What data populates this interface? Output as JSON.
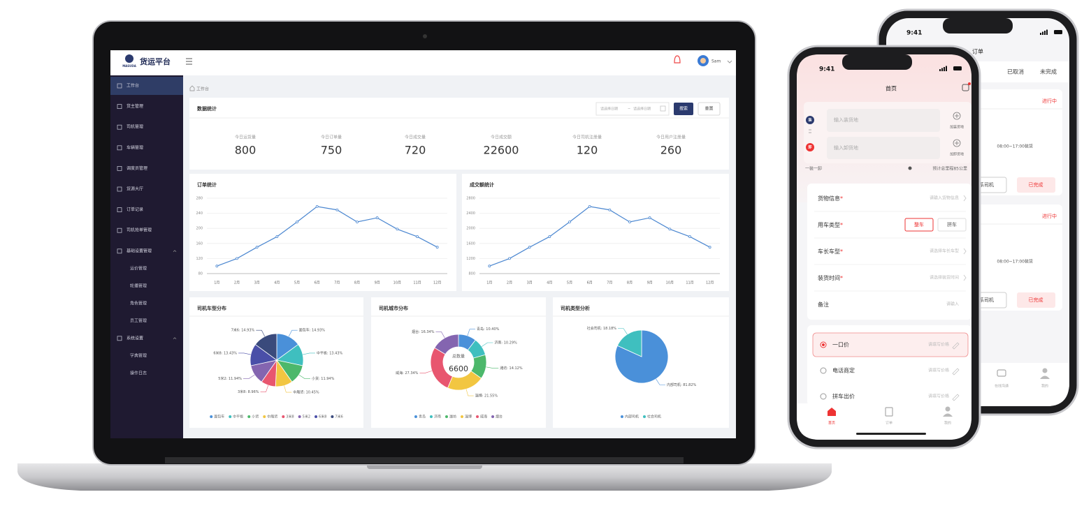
{
  "laptop": {
    "header": {
      "logo_brand": "MASUDA",
      "logo_text": "货运平台",
      "user": "Sam"
    },
    "sidebar": [
      {
        "label": "工作台"
      },
      {
        "label": "货主管理"
      },
      {
        "label": "司机管理"
      },
      {
        "label": "车辆管理"
      },
      {
        "label": "调度员管理"
      },
      {
        "label": "货源大厅"
      },
      {
        "label": "订单记录"
      },
      {
        "label": "司机抢单管理"
      },
      {
        "label": "基础设置管理",
        "children": [
          "运价管理",
          "轮播管理",
          "角色管理",
          "员工管理"
        ]
      },
      {
        "label": "系统设置",
        "children": [
          "字典管理",
          "操作日志"
        ]
      }
    ],
    "breadcrumb": "工作台",
    "stats": {
      "title": "数据统计",
      "date_start": "请选择日期",
      "date_sep": "~",
      "date_end": "请选择日期",
      "search": "搜索",
      "reset": "重置",
      "items": [
        {
          "label": "今日运货量",
          "value": 800
        },
        {
          "label": "今日订单量",
          "value": 750
        },
        {
          "label": "今日成交量",
          "value": 720
        },
        {
          "label": "今日成交额",
          "value": 22600
        },
        {
          "label": "今日司机注册量",
          "value": 120
        },
        {
          "label": "今日用户注册量",
          "value": 260
        }
      ]
    }
  },
  "chart_data": [
    {
      "type": "line",
      "title": "订单统计",
      "categories": [
        "1月",
        "2月",
        "3月",
        "4月",
        "5月",
        "6月",
        "7月",
        "8月",
        "9月",
        "10月",
        "11月",
        "12月"
      ],
      "values": [
        100,
        120,
        150,
        178,
        217,
        258,
        249,
        217,
        228,
        198,
        178,
        150
      ],
      "color": "#4a86d0",
      "ylim": [
        80,
        280
      ],
      "yticks": [
        80,
        120,
        160,
        200,
        240,
        280
      ],
      "grid": true
    },
    {
      "type": "line",
      "title": "成交额统计",
      "categories": [
        "1月",
        "2月",
        "3月",
        "4月",
        "5月",
        "6月",
        "7月",
        "8月",
        "9月",
        "10月",
        "11月",
        "12月"
      ],
      "values": [
        1000,
        1200,
        1500,
        1780,
        2170,
        2580,
        2490,
        2170,
        2280,
        1980,
        1780,
        1500
      ],
      "color": "#4a86d0",
      "ylim": [
        800,
        2800
      ],
      "yticks": [
        800,
        1200,
        1600,
        2000,
        2400,
        2800
      ],
      "grid": true
    },
    {
      "type": "pie",
      "title": "司机车型分布",
      "categories": [
        "面包车",
        "中平板",
        "小货",
        "中厢货",
        "3米8",
        "5米2",
        "6米8",
        "7米6"
      ],
      "values": [
        14.93,
        13.43,
        11.94,
        10.45,
        8.96,
        11.94,
        13.43,
        14.93
      ],
      "value_labels": [
        "面包车: 14.93%",
        "中平板: 13.43%",
        "小货: 11.94%",
        "中厢货: 10.45%",
        "3米8: 8.96%",
        "5米2: 11.94%",
        "6米8: 13.43%",
        "7米6: 14.93%"
      ],
      "colors": [
        "#4a90d9",
        "#3fbfbf",
        "#4cb86b",
        "#f2c641",
        "#e8566f",
        "#8465b0",
        "#4a4fa8",
        "#3a4a7c"
      ],
      "legend": "bottom"
    },
    {
      "type": "donut",
      "title": "司机城市分布",
      "center_label": "总数量",
      "center_value": 6600,
      "categories": [
        "青岛",
        "济南",
        "潍坊",
        "淄博",
        "威海",
        "烟台"
      ],
      "values": [
        10.4,
        10.29,
        14.12,
        21.55,
        27.34,
        16.34
      ],
      "value_labels": [
        "青岛: 10.40%",
        "济南: 10.29%",
        "潍坊: 14.12%",
        "淄博: 21.55%",
        "威海: 27.34%",
        "烟台: 16.34%"
      ],
      "colors": [
        "#4a90d9",
        "#3fbfbf",
        "#4cb86b",
        "#f2c641",
        "#e8566f",
        "#8465b0"
      ],
      "legend": "bottom"
    },
    {
      "type": "pie",
      "title": "司机类型分析",
      "categories": [
        "内部司机",
        "社会司机"
      ],
      "values": [
        81.82,
        18.18
      ],
      "value_labels": [
        "内部司机: 81.82%",
        "社会司机: 18.18%"
      ],
      "colors": [
        "#4a90d9",
        "#3fbfbf"
      ],
      "legend": "bottom"
    }
  ],
  "phone_front": {
    "time": "9:41",
    "title": "首页",
    "load_badge": "装",
    "load_placeholder": "输入装货地",
    "load_add": "加装货地",
    "unload_badge": "卸",
    "unload_placeholder": "输入卸货地",
    "unload_add": "加卸货地",
    "route_type": "一装一卸",
    "distance": "预计总里程85公里",
    "required_mark": "*",
    "form": [
      {
        "label": "货物信息",
        "required": true,
        "placeholder": "请输入货物信息"
      },
      {
        "label": "用车类型",
        "required": true,
        "options": [
          "整车",
          "拼车"
        ]
      },
      {
        "label": "车长车型",
        "required": true,
        "placeholder": "请选择车长车型"
      },
      {
        "label": "装货时间",
        "required": true,
        "placeholder": "请选择装货时间"
      },
      {
        "label": "备注",
        "required": false,
        "placeholder": "请输入"
      }
    ],
    "price_options": [
      {
        "label": "一口价",
        "placeholder": "请填写价格"
      },
      {
        "label": "电话商定",
        "placeholder": "请填写价格"
      },
      {
        "label": "拼车出价",
        "placeholder": "请填写价格"
      }
    ],
    "tabbar": [
      "首页",
      "订单",
      "我的"
    ]
  },
  "phone_back": {
    "time": "9:41",
    "title": "订单",
    "tabs": [
      "已取消",
      "未完成"
    ],
    "orders": [
      {
        "status": "进行中",
        "load_time": "08:00~17:00装货",
        "action": "联系司机",
        "done": "已完成"
      },
      {
        "status": "进行中",
        "load_time": "08:00~17:00装货",
        "action": "联系司机",
        "done": "已完成"
      }
    ],
    "tabbar": [
      "在线沟通",
      "我的"
    ]
  }
}
